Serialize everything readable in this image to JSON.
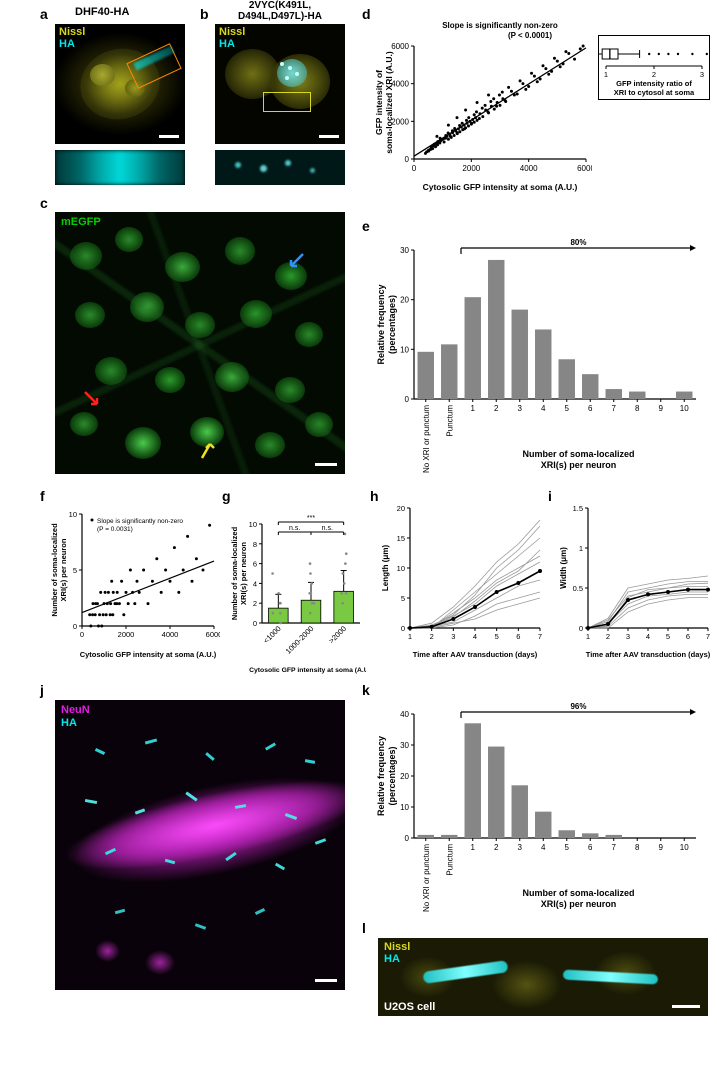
{
  "panel_a": {
    "label": "a",
    "title": "DHF40-HA",
    "nissl_label": "Nissl",
    "ha_label": "HA",
    "nissl_color": "#d8d820",
    "ha_color": "#00e8e8"
  },
  "panel_b": {
    "label": "b",
    "title": "2VYC(K491L, D494L,D497L)-HA",
    "nissl_label": "Nissl",
    "ha_label": "HA",
    "nissl_color": "#d8d820",
    "ha_color": "#00e8e8"
  },
  "panel_c": {
    "label": "c",
    "mEGFP_label": "mEGFP",
    "mEGFP_color": "#00d000"
  },
  "panel_d": {
    "label": "d",
    "title": "Slope is significantly non-zero",
    "pvalue": "(P < 0.0001)",
    "xlabel": "Cytosolic GFP intensity at soma (A.U.)",
    "ylabel": "GFP intensity of soma-localized XRI (A.U.)",
    "xlim": [
      0,
      6000
    ],
    "xtick_step": 2000,
    "ylim": [
      0,
      6000
    ],
    "ytick_step": 2000,
    "points": [
      [
        400,
        300
      ],
      [
        500,
        450
      ],
      [
        550,
        500
      ],
      [
        600,
        600
      ],
      [
        650,
        550
      ],
      [
        700,
        700
      ],
      [
        750,
        650
      ],
      [
        800,
        800
      ],
      [
        820,
        750
      ],
      [
        850,
        900
      ],
      [
        900,
        850
      ],
      [
        920,
        950
      ],
      [
        950,
        1000
      ],
      [
        1000,
        1050
      ],
      [
        1050,
        900
      ],
      [
        1100,
        1100
      ],
      [
        1150,
        1200
      ],
      [
        1200,
        1050
      ],
      [
        1250,
        1300
      ],
      [
        1300,
        1150
      ],
      [
        1350,
        1400
      ],
      [
        1400,
        1250
      ],
      [
        1450,
        1500
      ],
      [
        1500,
        1400
      ],
      [
        1550,
        1600
      ],
      [
        1600,
        1450
      ],
      [
        1650,
        1700
      ],
      [
        1700,
        1550
      ],
      [
        1750,
        1800
      ],
      [
        1800,
        1650
      ],
      [
        1850,
        1900
      ],
      [
        1900,
        1750
      ],
      [
        1950,
        2000
      ],
      [
        2000,
        1850
      ],
      [
        2050,
        2100
      ],
      [
        2100,
        1950
      ],
      [
        2150,
        2200
      ],
      [
        2200,
        2050
      ],
      [
        2300,
        2400
      ],
      [
        2400,
        2250
      ],
      [
        2500,
        2600
      ],
      [
        2600,
        2450
      ],
      [
        2700,
        2800
      ],
      [
        2800,
        2650
      ],
      [
        2900,
        3000
      ],
      [
        3000,
        2850
      ],
      [
        3100,
        3200
      ],
      [
        3200,
        3050
      ],
      [
        3400,
        3600
      ],
      [
        3600,
        3450
      ],
      [
        3800,
        4000
      ],
      [
        4000,
        3850
      ],
      [
        4200,
        4400
      ],
      [
        4400,
        4250
      ],
      [
        4600,
        4800
      ],
      [
        4800,
        4650
      ],
      [
        5000,
        5200
      ],
      [
        5200,
        5050
      ],
      [
        5400,
        5600
      ],
      [
        5800,
        5850
      ],
      [
        800,
        1200
      ],
      [
        1200,
        1800
      ],
      [
        1500,
        2200
      ],
      [
        1800,
        2600
      ],
      [
        2200,
        3000
      ],
      [
        2600,
        3400
      ],
      [
        440,
        380
      ],
      [
        510,
        420
      ],
      [
        590,
        520
      ],
      [
        620,
        680
      ],
      [
        710,
        780
      ],
      [
        830,
        920
      ],
      [
        910,
        1100
      ],
      [
        1030,
        1080
      ],
      [
        1110,
        1250
      ],
      [
        1190,
        1380
      ],
      [
        1270,
        1200
      ],
      [
        1340,
        1500
      ],
      [
        1420,
        1620
      ],
      [
        1510,
        1350
      ],
      [
        1590,
        1780
      ],
      [
        1680,
        1900
      ],
      [
        1760,
        1600
      ],
      [
        1830,
        2050
      ],
      [
        1910,
        2200
      ],
      [
        2010,
        1900
      ],
      [
        2100,
        2350
      ],
      [
        2180,
        2500
      ],
      [
        2280,
        2150
      ],
      [
        2380,
        2700
      ],
      [
        2480,
        2850
      ],
      [
        2580,
        2500
      ],
      [
        2680,
        3050
      ],
      [
        2780,
        3200
      ],
      [
        2880,
        2800
      ],
      [
        2980,
        3400
      ],
      [
        3080,
        3550
      ],
      [
        3180,
        3100
      ],
      [
        3300,
        3800
      ],
      [
        3500,
        3400
      ],
      [
        3700,
        4150
      ],
      [
        3900,
        3700
      ],
      [
        4100,
        4550
      ],
      [
        4300,
        4100
      ],
      [
        4500,
        4950
      ],
      [
        4700,
        4500
      ],
      [
        4900,
        5350
      ],
      [
        5100,
        4900
      ],
      [
        5300,
        5700
      ],
      [
        5600,
        5300
      ],
      [
        5900,
        6000
      ]
    ],
    "fit_start": [
      0,
      150
    ],
    "fit_end": [
      6000,
      5900
    ],
    "inset_label": "GFP intensity ratio of XRI to cytosol at soma",
    "inset_xlim": [
      1,
      3
    ],
    "inset_ticks": [
      1,
      2,
      3
    ],
    "inset_box": {
      "median": 1.08,
      "q1": 0.92,
      "q3": 1.25,
      "whisker_lo": 0.6,
      "whisker_hi": 1.7
    },
    "inset_outliers": [
      1.9,
      2.1,
      2.3,
      2.5,
      2.8,
      3.1,
      3.3
    ]
  },
  "panel_e": {
    "label": "e",
    "xlabel": "Number of soma-localized XRI(s) per neuron",
    "ylabel": "Relative frequency (percentages)",
    "ylim": [
      0,
      30
    ],
    "ytick_step": 10,
    "categories": [
      "No XRI or punctum",
      "Punctum",
      "1",
      "2",
      "3",
      "4",
      "5",
      "6",
      "7",
      "8",
      "9",
      "10"
    ],
    "values": [
      9.5,
      11,
      20.5,
      28,
      18,
      14,
      8,
      5,
      2,
      1.5,
      0,
      1.5
    ],
    "bar_color": "#868686",
    "annotation": "80%"
  },
  "panel_f": {
    "label": "f",
    "title": "Slope is significantly non-zero (P = 0.0031)",
    "xlabel": "Cytosolic GFP intensity at soma (A.U.)",
    "ylabel": "Number of soma-localized XRI(s) per neuron",
    "xlim": [
      0,
      6000
    ],
    "xtick_step": 2000,
    "ylim": [
      0,
      10
    ],
    "ytick_step": 5,
    "points": [
      [
        350,
        1
      ],
      [
        400,
        0
      ],
      [
        500,
        2
      ],
      [
        600,
        1
      ],
      [
        700,
        2
      ],
      [
        800,
        1
      ],
      [
        850,
        3
      ],
      [
        900,
        0
      ],
      [
        1000,
        2
      ],
      [
        1100,
        1
      ],
      [
        1200,
        3
      ],
      [
        1300,
        2
      ],
      [
        1350,
        4
      ],
      [
        1400,
        1
      ],
      [
        1500,
        2
      ],
      [
        1600,
        3
      ],
      [
        1700,
        2
      ],
      [
        1800,
        4
      ],
      [
        1900,
        1
      ],
      [
        2000,
        3
      ],
      [
        2100,
        2
      ],
      [
        2200,
        5
      ],
      [
        2300,
        3
      ],
      [
        2400,
        2
      ],
      [
        2500,
        4
      ],
      [
        2600,
        3
      ],
      [
        2800,
        5
      ],
      [
        3000,
        2
      ],
      [
        3200,
        4
      ],
      [
        3400,
        6
      ],
      [
        3600,
        3
      ],
      [
        3800,
        5
      ],
      [
        4000,
        4
      ],
      [
        4200,
        7
      ],
      [
        4400,
        3
      ],
      [
        4600,
        5
      ],
      [
        4800,
        8
      ],
      [
        5000,
        4
      ],
      [
        5200,
        6
      ],
      [
        5500,
        5
      ],
      [
        5800,
        9
      ],
      [
        480,
        1
      ],
      [
        620,
        2
      ],
      [
        750,
        0
      ],
      [
        960,
        1
      ],
      [
        1050,
        3
      ],
      [
        1150,
        2
      ],
      [
        1280,
        1
      ],
      [
        1420,
        3
      ],
      [
        1580,
        2
      ]
    ],
    "fit_start": [
      0,
      1.2
    ],
    "fit_end": [
      6000,
      5.8
    ]
  },
  "panel_g": {
    "label": "g",
    "xlabel": "Cytosolic GFP intensity at soma (A.U.)",
    "ylabel": "Number of soma-localized XRI(s) per neuron",
    "ylim": [
      0,
      10
    ],
    "ytick_step": 2,
    "categories": [
      "<1000",
      "1000-2000",
      ">2000"
    ],
    "means": [
      1.5,
      2.3,
      3.2
    ],
    "sds": [
      1.4,
      1.8,
      2.1
    ],
    "bar_color": "#7ac943",
    "points": [
      [
        0,
        0
      ],
      [
        0,
        1
      ],
      [
        0,
        1
      ],
      [
        0,
        2
      ],
      [
        0,
        2
      ],
      [
        0,
        3
      ],
      [
        0,
        5
      ],
      [
        1,
        1
      ],
      [
        1,
        2
      ],
      [
        1,
        2
      ],
      [
        1,
        3
      ],
      [
        1,
        3
      ],
      [
        1,
        4
      ],
      [
        1,
        5
      ],
      [
        1,
        6
      ],
      [
        2,
        2
      ],
      [
        2,
        3
      ],
      [
        2,
        3
      ],
      [
        2,
        4
      ],
      [
        2,
        5
      ],
      [
        2,
        6
      ],
      [
        2,
        7
      ],
      [
        2,
        9
      ]
    ],
    "sig_labels": [
      "n.s.",
      "n.s.",
      "***"
    ]
  },
  "panel_h": {
    "label": "h",
    "xlabel": "Time after AAV transduction (days)",
    "ylabel": "Length (μm)",
    "xlim": [
      1,
      7
    ],
    "xtick_step": 1,
    "ylim": [
      0,
      20
    ],
    "ytick_step": 5,
    "mean_line": [
      [
        1,
        0
      ],
      [
        2,
        0.2
      ],
      [
        3,
        1.5
      ],
      [
        4,
        3.5
      ],
      [
        5,
        6
      ],
      [
        6,
        7.5
      ],
      [
        7,
        9.5
      ]
    ],
    "traces": [
      [
        [
          1,
          0
        ],
        [
          2,
          0
        ],
        [
          3,
          0.5
        ],
        [
          4,
          2
        ],
        [
          5,
          4
        ],
        [
          6,
          5
        ],
        [
          7,
          6
        ]
      ],
      [
        [
          1,
          0
        ],
        [
          2,
          0.3
        ],
        [
          3,
          1
        ],
        [
          4,
          3
        ],
        [
          5,
          5
        ],
        [
          6,
          7
        ],
        [
          7,
          8
        ]
      ],
      [
        [
          1,
          0
        ],
        [
          2,
          0.5
        ],
        [
          3,
          2
        ],
        [
          4,
          4
        ],
        [
          5,
          7
        ],
        [
          6,
          9
        ],
        [
          7,
          11
        ]
      ],
      [
        [
          1,
          0
        ],
        [
          2,
          0.2
        ],
        [
          3,
          2.5
        ],
        [
          4,
          5
        ],
        [
          5,
          8
        ],
        [
          6,
          10
        ],
        [
          7,
          12
        ]
      ],
      [
        [
          1,
          0
        ],
        [
          2,
          0
        ],
        [
          3,
          3
        ],
        [
          4,
          6
        ],
        [
          5,
          9
        ],
        [
          6,
          12
        ],
        [
          7,
          15
        ]
      ],
      [
        [
          1,
          0
        ],
        [
          2,
          0.8
        ],
        [
          3,
          3.5
        ],
        [
          4,
          7
        ],
        [
          5,
          11
        ],
        [
          6,
          14
        ],
        [
          7,
          18
        ]
      ],
      [
        [
          1,
          0
        ],
        [
          2,
          0.1
        ],
        [
          3,
          0.8
        ],
        [
          4,
          1.5
        ],
        [
          5,
          3
        ],
        [
          6,
          4
        ],
        [
          7,
          5
        ]
      ],
      [
        [
          1,
          0
        ],
        [
          2,
          0.4
        ],
        [
          3,
          1.8
        ],
        [
          4,
          4.5
        ],
        [
          5,
          7.5
        ],
        [
          6,
          9.5
        ],
        [
          7,
          13
        ]
      ],
      [
        [
          1,
          0
        ],
        [
          2,
          0.3
        ],
        [
          3,
          2.2
        ],
        [
          4,
          5.5
        ],
        [
          5,
          10
        ],
        [
          6,
          13
        ],
        [
          7,
          17
        ]
      ]
    ]
  },
  "panel_i": {
    "label": "i",
    "xlabel": "Time after AAV transduction (days)",
    "ylabel": "Width (μm)",
    "xlim": [
      1,
      7
    ],
    "xtick_step": 1,
    "ylim": [
      0,
      1.5
    ],
    "ytick_step": 0.5,
    "mean_line": [
      [
        1,
        0
      ],
      [
        2,
        0.05
      ],
      [
        3,
        0.35
      ],
      [
        4,
        0.42
      ],
      [
        5,
        0.45
      ],
      [
        6,
        0.48
      ],
      [
        7,
        0.48
      ]
    ],
    "traces": [
      [
        [
          1,
          0
        ],
        [
          2,
          0
        ],
        [
          3,
          0.2
        ],
        [
          4,
          0.3
        ],
        [
          5,
          0.35
        ],
        [
          6,
          0.38
        ],
        [
          7,
          0.38
        ]
      ],
      [
        [
          1,
          0
        ],
        [
          2,
          0.05
        ],
        [
          3,
          0.3
        ],
        [
          4,
          0.4
        ],
        [
          5,
          0.42
        ],
        [
          6,
          0.45
        ],
        [
          7,
          0.45
        ]
      ],
      [
        [
          1,
          0
        ],
        [
          2,
          0.1
        ],
        [
          3,
          0.4
        ],
        [
          4,
          0.45
        ],
        [
          5,
          0.5
        ],
        [
          6,
          0.52
        ],
        [
          7,
          0.52
        ]
      ],
      [
        [
          1,
          0
        ],
        [
          2,
          0.08
        ],
        [
          3,
          0.45
        ],
        [
          4,
          0.5
        ],
        [
          5,
          0.55
        ],
        [
          6,
          0.58
        ],
        [
          7,
          0.58
        ]
      ],
      [
        [
          1,
          0
        ],
        [
          2,
          0.02
        ],
        [
          3,
          0.25
        ],
        [
          4,
          0.35
        ],
        [
          5,
          0.4
        ],
        [
          6,
          0.42
        ],
        [
          7,
          0.42
        ]
      ],
      [
        [
          1,
          0
        ],
        [
          2,
          0.12
        ],
        [
          3,
          0.5
        ],
        [
          4,
          0.55
        ],
        [
          5,
          0.6
        ],
        [
          6,
          0.62
        ],
        [
          7,
          0.65
        ]
      ],
      [
        [
          1,
          0
        ],
        [
          2,
          0.03
        ],
        [
          3,
          0.38
        ],
        [
          4,
          0.48
        ],
        [
          5,
          0.5
        ],
        [
          6,
          0.55
        ],
        [
          7,
          0.56
        ]
      ]
    ]
  },
  "panel_j": {
    "label": "j",
    "neun_label": "NeuN",
    "ha_label": "HA",
    "neun_color": "#e020e0",
    "ha_color": "#00e8e8"
  },
  "panel_k": {
    "label": "k",
    "xlabel": "Number of soma-localized XRI(s) per neuron",
    "ylabel": "Relative frequency (percentages)",
    "ylim": [
      0,
      40
    ],
    "ytick_step": 10,
    "categories": [
      "No XRI or punctum",
      "Punctum",
      "1",
      "2",
      "3",
      "4",
      "5",
      "6",
      "7",
      "8",
      "9",
      "10"
    ],
    "values": [
      1,
      1,
      37,
      29.5,
      17,
      8.5,
      2.5,
      1.5,
      1,
      0,
      0,
      0
    ],
    "bar_color": "#868686",
    "annotation": "96%"
  },
  "panel_l": {
    "label": "l",
    "nissl_label": "Nissl",
    "ha_label": "HA",
    "cell_label": "U2OS cell",
    "nissl_color": "#d8d820",
    "ha_color": "#00e8e8"
  }
}
